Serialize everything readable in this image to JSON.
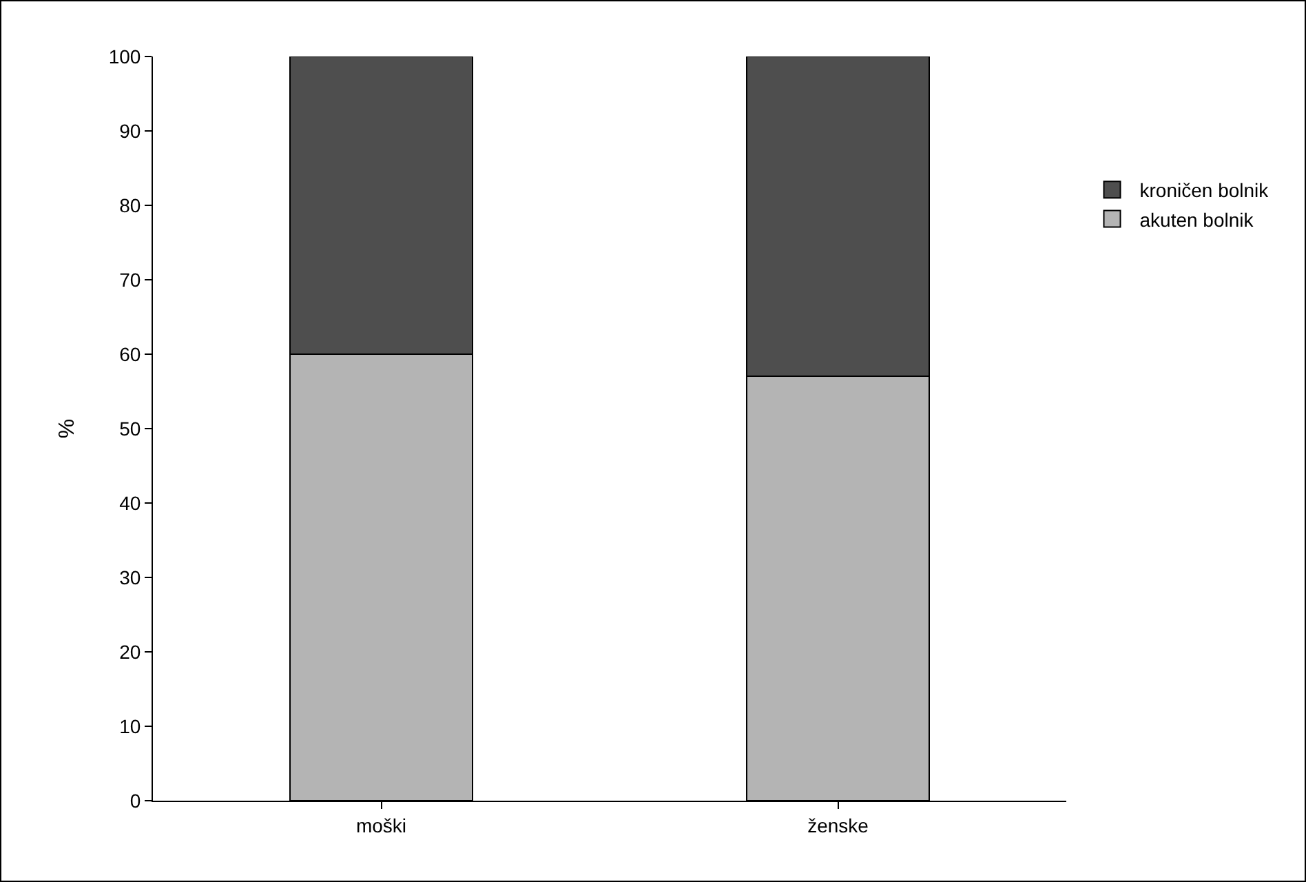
{
  "chart_data": {
    "type": "bar",
    "stacked": true,
    "ylabel": "%",
    "categories": [
      "moški",
      "ženske"
    ],
    "series": [
      {
        "name": "akuten bolnik",
        "color": "#b4b4b4",
        "values": [
          60,
          57
        ]
      },
      {
        "name": "kroničen bolnik",
        "color": "#4e4e4e",
        "values": [
          40,
          43
        ]
      }
    ],
    "ylim": [
      0,
      100
    ],
    "yticks": [
      0,
      10,
      20,
      30,
      40,
      50,
      60,
      70,
      80,
      90,
      100
    ],
    "grid": false,
    "legend": "top right"
  }
}
